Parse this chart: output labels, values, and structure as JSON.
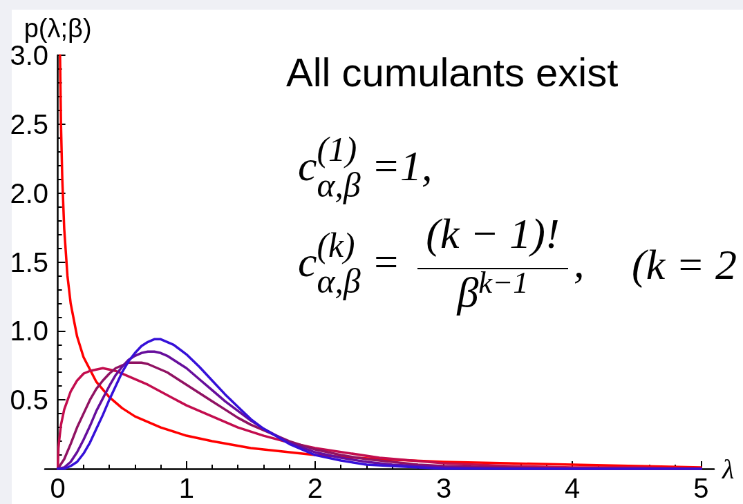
{
  "chart_data": {
    "type": "line",
    "xlabel": "λ",
    "ylabel": "p(λ;β)",
    "annotations": [
      "All cumulants exist",
      "c$^{(1)}$$_{α,β}$ =1,",
      "c$^{(k)}$$_{α,β}$ =",
      "(k − 1)!",
      "β$^{k−1}$",
      ",",
      "(k = 2"
    ],
    "series": [
      {
        "color": "#ff0000",
        "x": [
          0.0174,
          0.025,
          0.035,
          0.05,
          0.075,
          0.1,
          0.15,
          0.2,
          0.3,
          0.4,
          0.5,
          0.6,
          0.8,
          1.0,
          1.2,
          1.5,
          2.0,
          2.5,
          3.0,
          3.5,
          4.0,
          4.5,
          5.0
        ],
        "values": [
          3.0,
          2.49,
          2.1,
          1.74,
          1.4,
          1.2,
          0.96,
          0.81,
          0.63,
          0.52,
          0.44,
          0.38,
          0.3,
          0.24,
          0.2,
          0.15,
          0.1,
          0.07,
          0.05,
          0.04,
          0.03,
          0.02,
          0.01
        ]
      },
      {
        "color": "#c30d4e",
        "x": [
          0,
          0.005,
          0.01,
          0.025,
          0.05,
          0.1,
          0.15,
          0.2,
          0.25,
          0.3,
          0.35,
          0.4,
          0.45,
          0.5,
          0.6,
          0.7,
          0.8,
          0.9,
          1.0,
          1.2,
          1.4,
          1.6,
          1.8,
          2.0,
          2.5,
          3.0,
          3.5,
          4.0,
          4.5,
          5.0
        ],
        "values": [
          0,
          0.15,
          0.2,
          0.32,
          0.43,
          0.56,
          0.64,
          0.69,
          0.71,
          0.72,
          0.73,
          0.72,
          0.71,
          0.69,
          0.65,
          0.61,
          0.56,
          0.51,
          0.46,
          0.38,
          0.3,
          0.24,
          0.19,
          0.15,
          0.08,
          0.04,
          0.02,
          0.01,
          0.01,
          0
        ]
      },
      {
        "color": "#901262",
        "x": [
          0,
          0.05,
          0.1,
          0.15,
          0.2,
          0.25,
          0.3,
          0.35,
          0.4,
          0.45,
          0.5,
          0.55,
          0.6,
          0.65,
          0.7,
          0.75,
          0.8,
          0.85,
          0.9,
          1.0,
          1.1,
          1.2,
          1.3,
          1.4,
          1.5,
          1.6,
          1.8,
          2.0,
          2.2,
          2.4,
          2.6,
          2.8,
          3.0,
          3.5,
          4.0,
          4.5,
          5.0
        ],
        "values": [
          0,
          0.07,
          0.18,
          0.3,
          0.4,
          0.5,
          0.58,
          0.64,
          0.69,
          0.73,
          0.75,
          0.77,
          0.77,
          0.77,
          0.76,
          0.74,
          0.72,
          0.7,
          0.67,
          0.61,
          0.55,
          0.49,
          0.43,
          0.37,
          0.32,
          0.28,
          0.2,
          0.14,
          0.1,
          0.07,
          0.05,
          0.03,
          0.02,
          0.01,
          0,
          0,
          0
        ]
      },
      {
        "color": "#660e9c",
        "x": [
          0,
          0.05,
          0.1,
          0.15,
          0.2,
          0.25,
          0.3,
          0.35,
          0.4,
          0.45,
          0.5,
          0.55,
          0.6,
          0.65,
          0.7,
          0.75,
          0.8,
          0.85,
          0.9,
          1.0,
          1.1,
          1.2,
          1.3,
          1.4,
          1.5,
          1.6,
          1.8,
          2.0,
          2.2,
          2.4,
          2.6,
          2.8,
          3.0,
          3.5,
          4.0,
          4.5,
          5.0
        ],
        "values": [
          0,
          0.01,
          0.05,
          0.12,
          0.21,
          0.31,
          0.42,
          0.51,
          0.6,
          0.68,
          0.74,
          0.79,
          0.82,
          0.84,
          0.85,
          0.85,
          0.84,
          0.82,
          0.79,
          0.73,
          0.65,
          0.57,
          0.49,
          0.42,
          0.35,
          0.29,
          0.19,
          0.12,
          0.08,
          0.05,
          0.03,
          0.02,
          0.01,
          0,
          0,
          0,
          0
        ]
      },
      {
        "color": "#3510d8",
        "x": [
          0,
          0.05,
          0.1,
          0.15,
          0.2,
          0.25,
          0.3,
          0.35,
          0.4,
          0.45,
          0.5,
          0.55,
          0.6,
          0.65,
          0.7,
          0.75,
          0.8,
          0.85,
          0.9,
          1.0,
          1.1,
          1.2,
          1.3,
          1.4,
          1.5,
          1.6,
          1.8,
          2.0,
          2.2,
          2.4,
          2.6,
          2.8,
          3.0,
          3.5,
          4.0,
          4.5,
          5.0
        ],
        "values": [
          0,
          0,
          0.02,
          0.05,
          0.11,
          0.19,
          0.29,
          0.39,
          0.5,
          0.6,
          0.7,
          0.78,
          0.84,
          0.89,
          0.92,
          0.94,
          0.94,
          0.92,
          0.9,
          0.83,
          0.74,
          0.64,
          0.54,
          0.45,
          0.36,
          0.29,
          0.18,
          0.1,
          0.06,
          0.03,
          0.02,
          0.01,
          0,
          0,
          0,
          0,
          0
        ]
      }
    ],
    "xlim": [
      -0.1,
      5.1
    ],
    "ylim": [
      0,
      3
    ],
    "xticks": [
      0,
      {
        "value": 0.2,
        "label": null
      },
      {
        "value": 0.4,
        "label": null
      },
      {
        "value": 0.6,
        "label": null
      },
      {
        "value": 0.8,
        "label": null
      },
      1,
      {
        "value": 1.2,
        "label": null
      },
      {
        "value": 1.4,
        "label": null
      },
      {
        "value": 1.6,
        "label": null
      },
      {
        "value": 1.8,
        "label": null
      },
      2,
      {
        "value": 2.2,
        "label": null
      },
      {
        "value": 2.4,
        "label": null
      },
      {
        "value": 2.6,
        "label": null
      },
      {
        "value": 2.8,
        "label": null
      },
      3,
      {
        "value": 3.2,
        "label": null
      },
      {
        "value": 3.4,
        "label": null
      },
      {
        "value": 3.6,
        "label": null
      },
      {
        "value": 3.8,
        "label": null
      },
      4,
      {
        "value": 4.2,
        "label": null
      },
      {
        "value": 4.4,
        "label": null
      },
      {
        "value": 4.6,
        "label": null
      },
      {
        "value": 4.8,
        "label": null
      },
      5
    ],
    "yticks": [
      {
        "value": 0.1,
        "label": null
      },
      {
        "value": 0.2,
        "label": null
      },
      {
        "value": 0.3,
        "label": null
      },
      {
        "value": 0.4,
        "label": null
      },
      0.5,
      {
        "value": 0.6,
        "label": null
      },
      {
        "value": 0.7,
        "label": null
      },
      {
        "value": 0.8,
        "label": null
      },
      {
        "value": 0.9,
        "label": null
      },
      {
        "value": 1,
        "label": "1.0"
      },
      {
        "value": 1.1,
        "label": null
      },
      {
        "value": 1.2,
        "label": null
      },
      {
        "value": 1.3,
        "label": null
      },
      {
        "value": 1.4,
        "label": null
      },
      1.5,
      {
        "value": 1.6,
        "label": null
      },
      {
        "value": 1.7,
        "label": null
      },
      {
        "value": 1.8,
        "label": null
      },
      {
        "value": 1.9,
        "label": null
      },
      {
        "value": 2,
        "label": "2.0"
      },
      {
        "value": 2.1,
        "label": null
      },
      {
        "value": 2.2,
        "label": null
      },
      {
        "value": 2.3,
        "label": null
      },
      {
        "value": 2.4,
        "label": null
      },
      2.5,
      {
        "value": 2.6,
        "label": null
      },
      {
        "value": 2.7,
        "label": null
      },
      {
        "value": 2.8,
        "label": null
      },
      {
        "value": 2.9,
        "label": null
      },
      {
        "value": 3,
        "label": "3.0"
      }
    ],
    "marker": "none"
  }
}
